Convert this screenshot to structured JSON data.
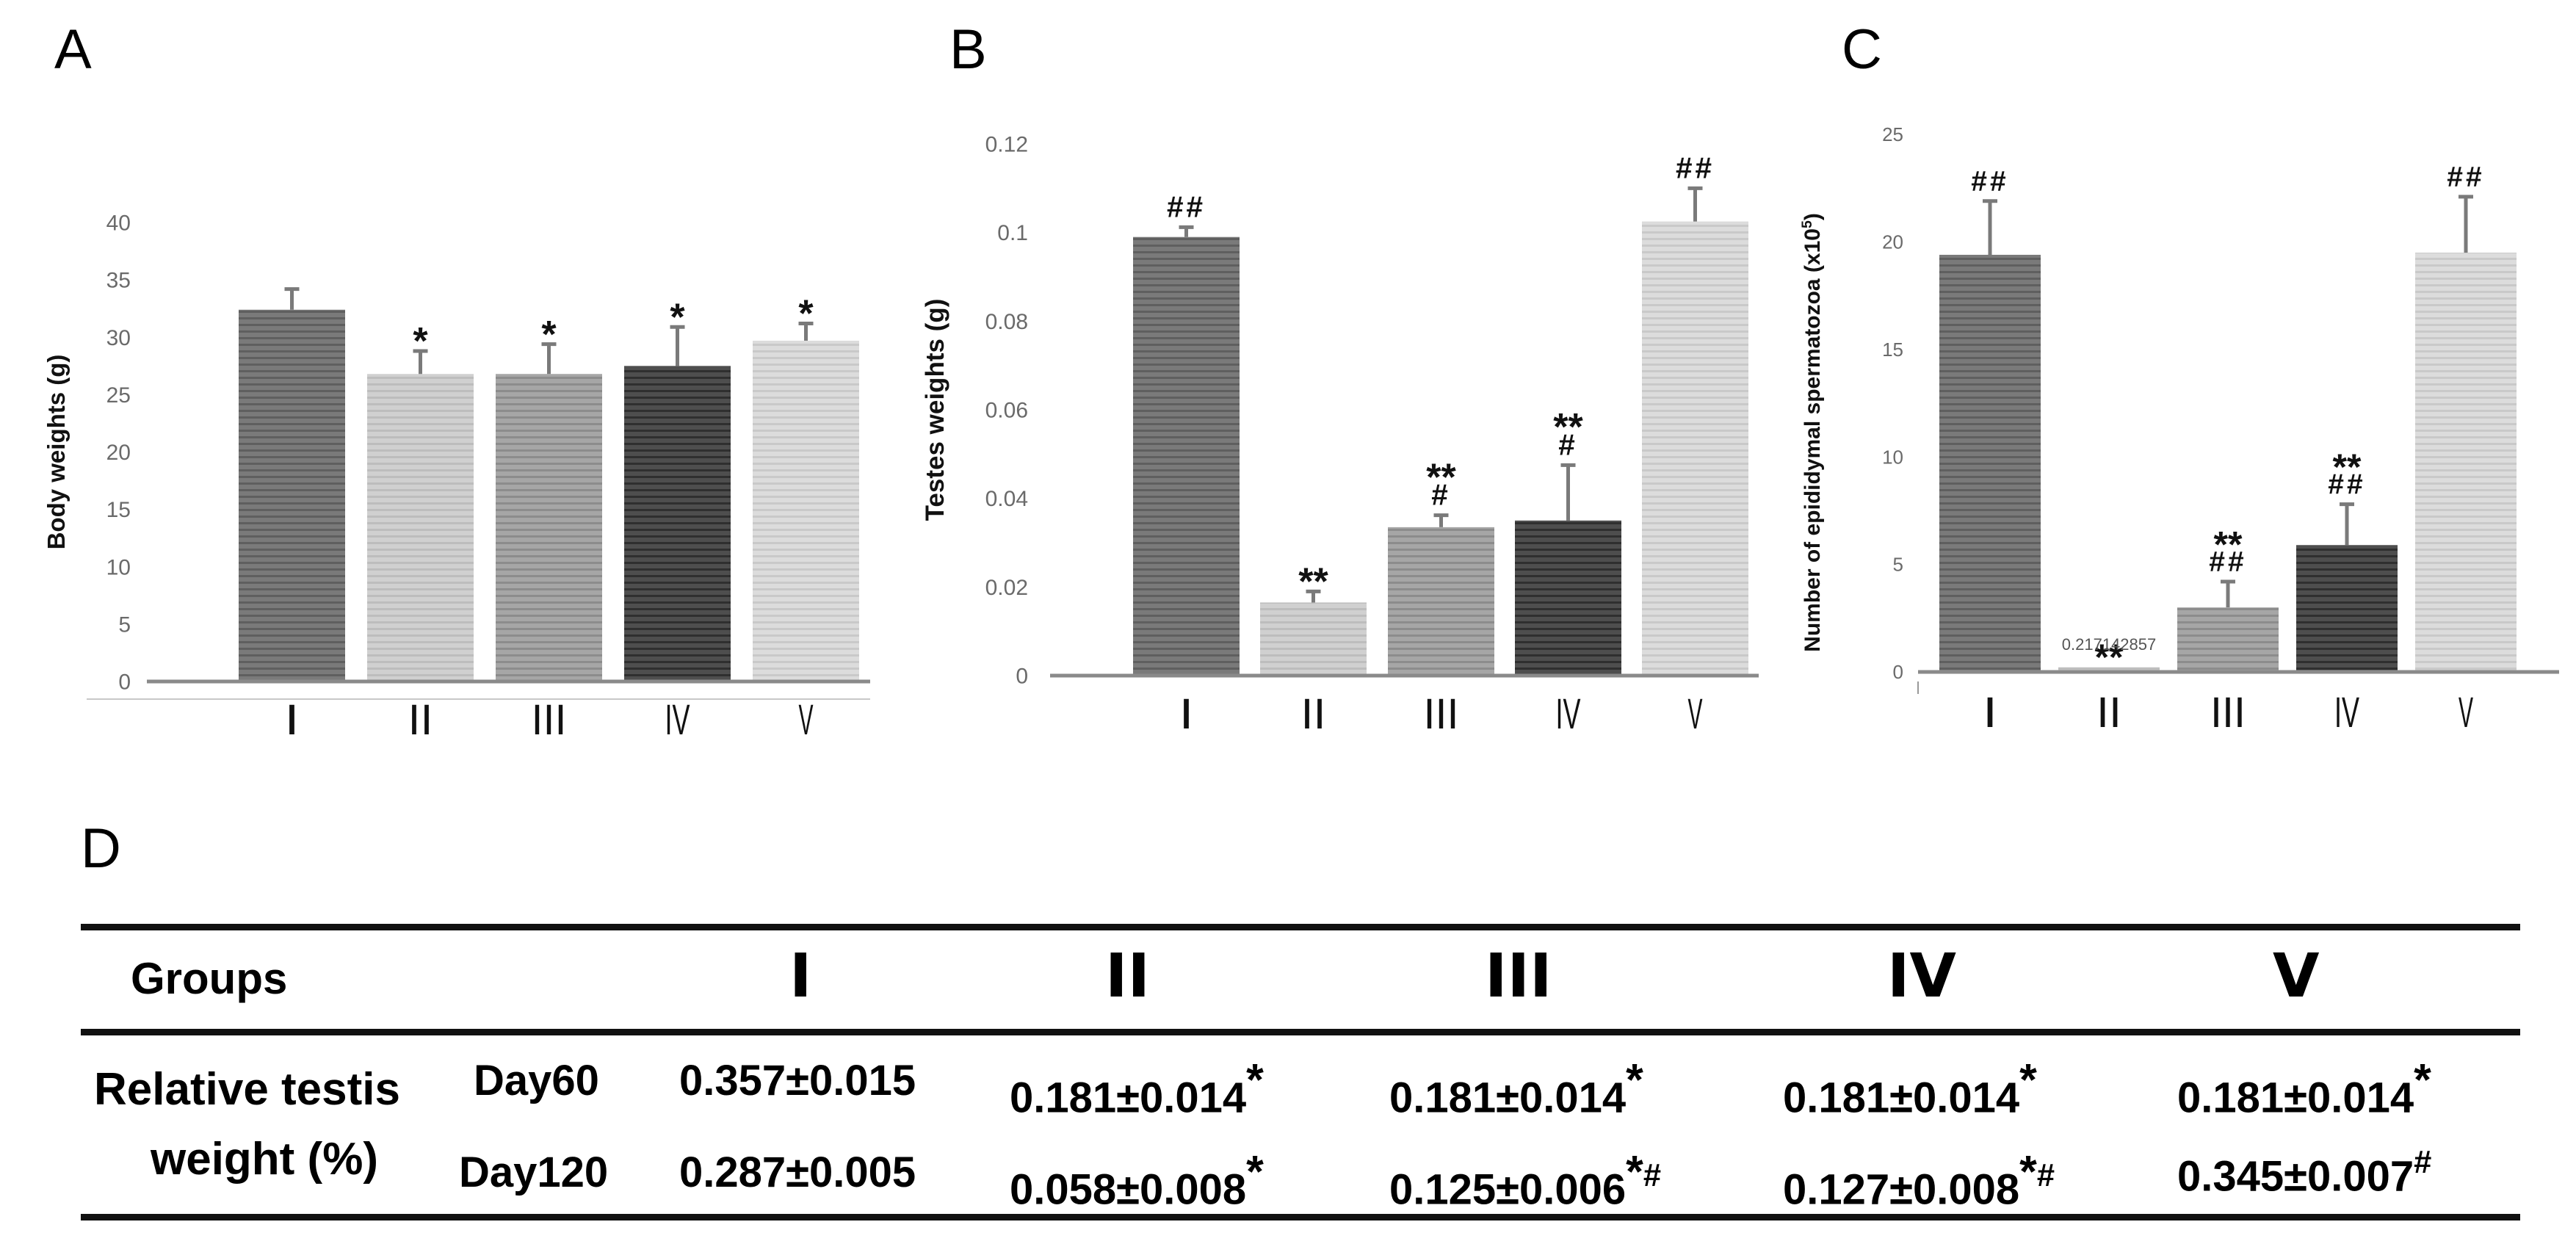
{
  "chart_data": [
    {
      "panel": "A",
      "type": "bar",
      "categories": [
        "I",
        "II",
        "III",
        "IV",
        "V"
      ],
      "values": [
        32.4,
        26.8,
        26.8,
        27.5,
        29.7
      ],
      "errors": [
        1.8,
        2.0,
        2.6,
        3.4,
        1.5
      ],
      "annotations": [
        "",
        "*",
        "*",
        "*",
        "*"
      ],
      "ylabel": "Body weights (g)",
      "ylim": [
        0,
        40
      ],
      "yticks": [
        "0",
        "5",
        "10",
        "15",
        "20",
        "25",
        "30",
        "35",
        "40"
      ],
      "grid": false
    },
    {
      "panel": "B",
      "type": "bar",
      "categories": [
        "I",
        "II",
        "III",
        "IV",
        "V"
      ],
      "values": [
        0.099,
        0.0165,
        0.0335,
        0.035,
        0.1025
      ],
      "errors": [
        0.0022,
        0.0025,
        0.0027,
        0.0125,
        0.0075
      ],
      "annotations": [
        [
          "##"
        ],
        [
          "**"
        ],
        [
          "**",
          "#"
        ],
        [
          "**",
          "#"
        ],
        [
          "##"
        ]
      ],
      "ylabel": "Testes weights (g)",
      "ylim": [
        0,
        0.12
      ],
      "yticks": [
        "0",
        "0.02",
        "0.04",
        "0.06",
        "0.08",
        "0.1",
        "0.12"
      ],
      "grid": false
    },
    {
      "panel": "C",
      "type": "bar",
      "categories": [
        "I",
        "II",
        "III",
        "IV",
        "V"
      ],
      "values": [
        19.4,
        0.217142857,
        3.0,
        5.9,
        19.5
      ],
      "errors": [
        2.5,
        0,
        1.2,
        1.9,
        2.6
      ],
      "annotations": [
        [
          "##"
        ],
        [
          "**"
        ],
        [
          "**",
          "##"
        ],
        [
          "**",
          "##"
        ],
        [
          "##"
        ]
      ],
      "value_label": "0.217142857",
      "ylabel": "Number of epididymal spermatozoa (x10",
      "ylabel_exp": "5",
      "ylabel_close": ")",
      "ylim": [
        0,
        25
      ],
      "yticks": [
        "0",
        "5",
        "10",
        "15",
        "20",
        "25"
      ],
      "grid": false
    },
    {
      "panel": "D",
      "type": "table",
      "header": [
        "Groups",
        "I",
        "II",
        "III",
        "IV",
        "V"
      ],
      "row_label": [
        "Relative testis",
        "weight (%)"
      ],
      "rows": [
        {
          "day": "Day60",
          "cells": [
            {
              "v": "0.357±0.015",
              "mark": ""
            },
            {
              "v": "0.181±0.014",
              "mark": "*"
            },
            {
              "v": "0.181±0.014",
              "mark": "*"
            },
            {
              "v": "0.181±0.014",
              "mark": "*"
            },
            {
              "v": "0.181±0.014",
              "mark": "*"
            }
          ]
        },
        {
          "day": "Day120",
          "cells": [
            {
              "v": "0.287±0.005",
              "mark": ""
            },
            {
              "v": "0.058±0.008",
              "mark": "*"
            },
            {
              "v": "0.125±0.006",
              "mark": "*#"
            },
            {
              "v": "0.127±0.008",
              "mark": "*#"
            },
            {
              "v": "0.345±0.007",
              "mark": "#"
            }
          ]
        }
      ]
    }
  ],
  "panel_letters": [
    "A",
    "B",
    "C",
    "D"
  ],
  "colors": {
    "axis": "#8a8a8a",
    "bar_fills": [
      "#7a7a7a",
      "#d0d0d0",
      "#a6a6a6",
      "#4e4e4e",
      "#dcdcdc"
    ],
    "bar_stripes": [
      "#5f5f5f",
      "#bdbdbd",
      "#8c8c8c",
      "#2f2f2f",
      "#c9c9c9"
    ],
    "error": "#7a7a7a"
  }
}
